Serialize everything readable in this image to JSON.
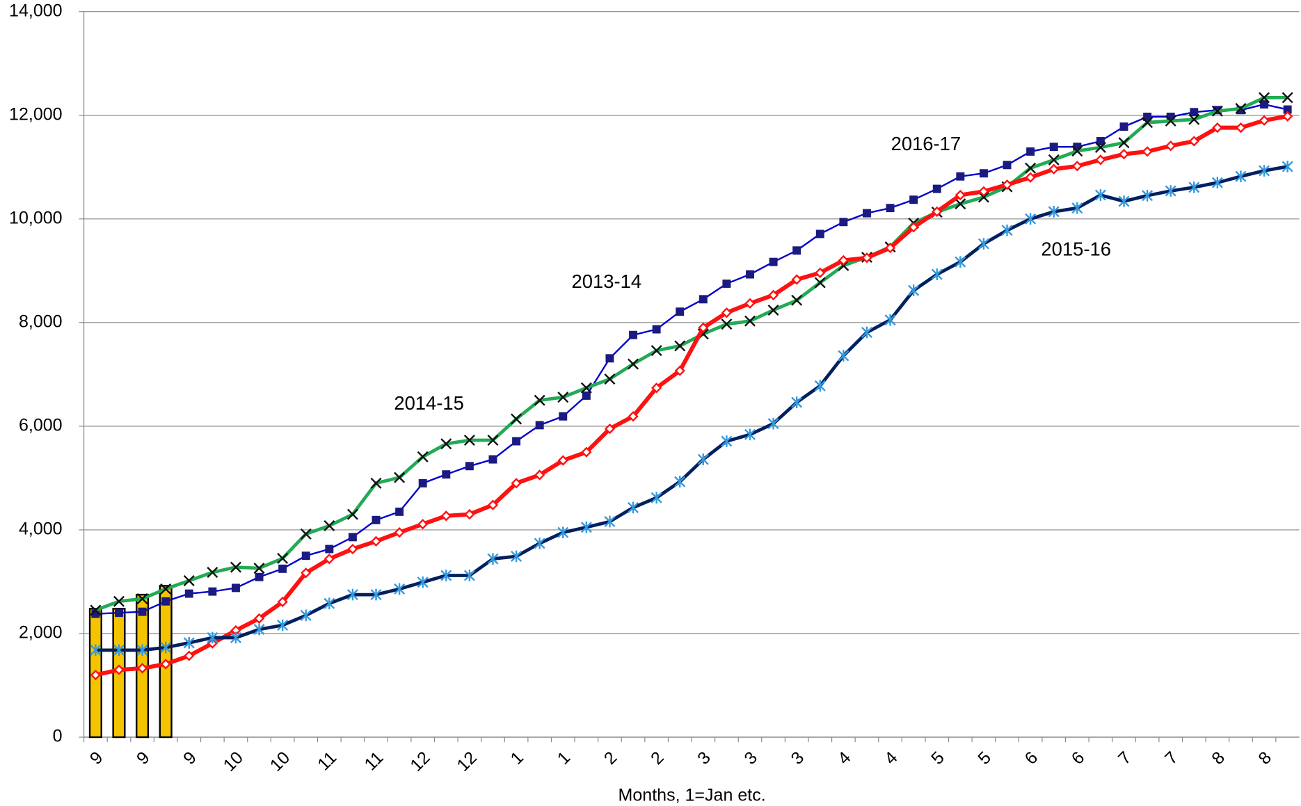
{
  "chart_data": {
    "type": "line",
    "x_label": "Months, 1=Jan etc.",
    "categories": [
      "9",
      null,
      "9",
      null,
      "9",
      null,
      "10",
      null,
      "10",
      null,
      "11",
      null,
      "11",
      null,
      "12",
      null,
      "12",
      null,
      "1",
      null,
      "1",
      null,
      "2",
      null,
      "2",
      null,
      "3",
      null,
      "3",
      null,
      "3",
      null,
      "4",
      null,
      "4",
      null,
      "5",
      null,
      "5",
      null,
      "6",
      null,
      "6",
      null,
      "7",
      null,
      "7",
      null,
      "8",
      null,
      "8",
      null
    ],
    "ylim": [
      0,
      14000
    ],
    "yticks": [
      0,
      {
        "value": 2000,
        "label": "2,000"
      },
      {
        "value": 4000,
        "label": "4,000"
      },
      {
        "value": 6000,
        "label": "6,000"
      },
      {
        "value": 8000,
        "label": "8,000"
      },
      {
        "value": 10000,
        "label": "10,000"
      },
      {
        "value": 12000,
        "label": "12,000"
      },
      {
        "value": 14000,
        "label": "14,000"
      }
    ],
    "grid": true,
    "annotations": [
      "2016-17",
      "2013-14",
      "2014-15",
      "2015-16"
    ],
    "series": [
      {
        "type": "bar",
        "color": "#f5c400",
        "values": [
          2480,
          2480,
          2750,
          2920,
          null,
          null,
          null,
          null,
          null,
          null,
          null,
          null,
          null,
          null,
          null,
          null,
          null,
          null,
          null,
          null,
          null,
          null,
          null,
          null,
          null,
          null,
          null,
          null,
          null,
          null,
          null,
          null,
          null,
          null,
          null,
          null,
          null,
          null,
          null,
          null,
          null,
          null,
          null,
          null,
          null,
          null,
          null,
          null,
          null,
          null,
          null,
          null
        ]
      },
      {
        "type": "line",
        "color": "#0000cc",
        "marker": "square",
        "marker_color": "#1a1a80",
        "width": 2,
        "values": [
          2380,
          2400,
          2420,
          2620,
          2770,
          2810,
          2880,
          3090,
          3250,
          3500,
          3630,
          3860,
          4190,
          4350,
          4900,
          5070,
          5230,
          5360,
          5710,
          6020,
          6190,
          6590,
          7310,
          7760,
          7870,
          8210,
          8450,
          8750,
          8930,
          9170,
          9390,
          9710,
          9940,
          10110,
          10210,
          10370,
          10580,
          10820,
          10880,
          11040,
          11300,
          11390,
          11390,
          11500,
          11780,
          11970,
          11970,
          12060,
          12100,
          12100,
          12210,
          12110
        ]
      },
      {
        "type": "line",
        "color": "#22aa55",
        "marker": "x",
        "marker_color": "#111111",
        "width": 4,
        "values": [
          2450,
          2620,
          2670,
          2860,
          3020,
          3180,
          3280,
          3260,
          3450,
          3920,
          4080,
          4300,
          4900,
          5010,
          5410,
          5660,
          5730,
          5730,
          6140,
          6500,
          6560,
          6740,
          6910,
          7200,
          7460,
          7550,
          7780,
          7970,
          8030,
          8240,
          8430,
          8770,
          9100,
          9260,
          9460,
          9920,
          10130,
          10290,
          10420,
          10620,
          10980,
          11140,
          11310,
          11380,
          11470,
          11860,
          11890,
          11920,
          12080,
          12130,
          12340,
          12340
        ]
      },
      {
        "type": "line",
        "color": "#ff1111",
        "marker": "diamond",
        "marker_color": "#ff1111",
        "width": 5,
        "values": [
          1200,
          1300,
          1330,
          1410,
          1570,
          1810,
          2060,
          2290,
          2610,
          3170,
          3440,
          3630,
          3780,
          3950,
          4110,
          4270,
          4300,
          4480,
          4900,
          5060,
          5340,
          5500,
          5950,
          6190,
          6740,
          7070,
          7900,
          8190,
          8370,
          8530,
          8830,
          8960,
          9200,
          9250,
          9440,
          9840,
          10140,
          10460,
          10530,
          10660,
          10800,
          10960,
          11020,
          11140,
          11250,
          11300,
          11410,
          11500,
          11760,
          11760,
          11900,
          11980
        ]
      },
      {
        "type": "line",
        "color": "#002060",
        "marker": "asterisk",
        "marker_color": "#3399dd",
        "width": 4,
        "values": [
          1680,
          1680,
          1680,
          1730,
          1820,
          1920,
          1920,
          2080,
          2160,
          2350,
          2580,
          2750,
          2750,
          2860,
          2990,
          3120,
          3120,
          3440,
          3490,
          3740,
          3950,
          4050,
          4160,
          4430,
          4620,
          4930,
          5360,
          5710,
          5840,
          6050,
          6460,
          6780,
          7360,
          7810,
          8050,
          8620,
          8930,
          9170,
          9520,
          9780,
          10000,
          10140,
          10210,
          10460,
          10340,
          10450,
          10540,
          10610,
          10700,
          10820,
          10930,
          11010
        ]
      }
    ]
  }
}
